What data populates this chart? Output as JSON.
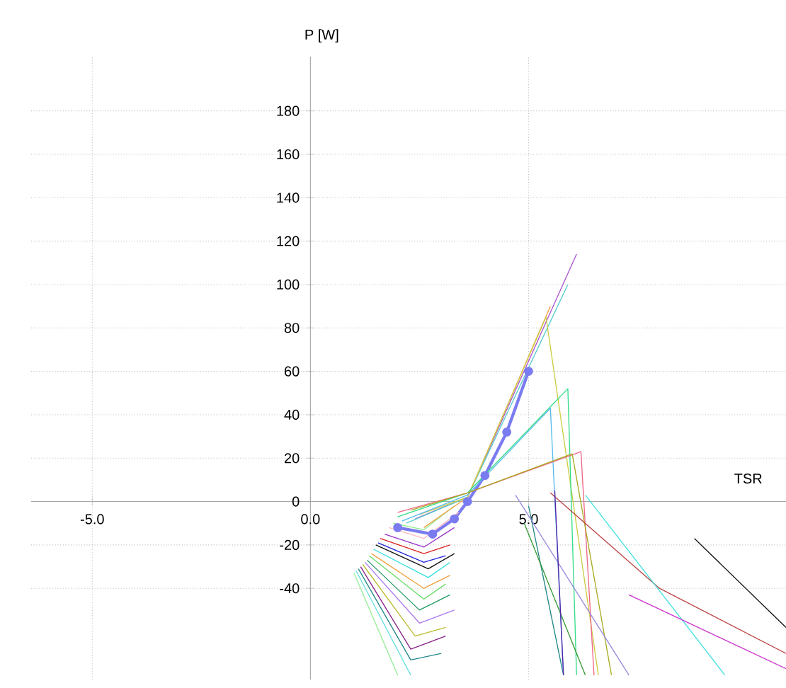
{
  "chart_data": {
    "type": "line",
    "xlabel": "TSR",
    "ylabel": "P [W]",
    "xlim": [
      -6.4,
      10.9
    ],
    "ylim": [
      -82,
      205
    ],
    "xticks": [
      {
        "value": -5,
        "label": "-5.0"
      },
      {
        "value": 0,
        "label": "0.0"
      },
      {
        "value": 5,
        "label": "5.0"
      }
    ],
    "yticks": [
      -40,
      -20,
      0,
      20,
      40,
      60,
      80,
      100,
      120,
      140,
      160,
      180
    ],
    "grid": true,
    "marker": "none",
    "line_style": "solid",
    "series": [
      {
        "color": "#7b7bf0",
        "marker": "circle",
        "x": [
          2.0,
          2.8,
          3.3,
          3.6,
          4.0,
          4.5,
          5.0
        ],
        "values": [
          -12,
          -15,
          -8,
          0,
          12,
          32,
          60
        ]
      },
      {
        "color": "#90ee90",
        "x": [
          1.9,
          2.6,
          3.3
        ],
        "values": [
          -10,
          -13,
          -2
        ]
      },
      {
        "color": "#ffb6c1",
        "x": [
          1.8,
          2.6,
          3.4
        ],
        "values": [
          -12,
          -17,
          -5
        ]
      },
      {
        "color": "#9932cc",
        "x": [
          1.7,
          2.6,
          3.3
        ],
        "values": [
          -15,
          -21,
          -12
        ]
      },
      {
        "color": "#dd2222",
        "x": [
          1.6,
          2.6,
          3.2
        ],
        "values": [
          -17,
          -24,
          -20
        ]
      },
      {
        "color": "#2222dd",
        "x": [
          1.55,
          2.6,
          3.1
        ],
        "values": [
          -19,
          -28,
          -25
        ]
      },
      {
        "color": "#111111",
        "x": [
          1.5,
          2.7,
          3.3
        ],
        "values": [
          -20,
          -31,
          -24
        ]
      },
      {
        "color": "#33dddd",
        "x": [
          1.45,
          2.7,
          3.2
        ],
        "values": [
          -22,
          -35,
          -28
        ]
      },
      {
        "color": "#f0a040",
        "x": [
          1.4,
          2.6,
          3.2
        ],
        "values": [
          -24,
          -40,
          -34
        ]
      },
      {
        "color": "#66dd66",
        "x": [
          1.35,
          2.6,
          3.1
        ],
        "values": [
          -25,
          -45,
          -38
        ]
      },
      {
        "color": "#229966",
        "x": [
          1.3,
          2.5,
          3.2
        ],
        "values": [
          -27,
          -50,
          -43
        ]
      },
      {
        "color": "#aa77ee",
        "x": [
          1.25,
          2.5,
          3.3
        ],
        "values": [
          -28,
          -56,
          -50
        ]
      },
      {
        "color": "#bbbb33",
        "x": [
          1.2,
          2.4,
          3.1
        ],
        "values": [
          -29,
          -62,
          -58
        ]
      },
      {
        "color": "#882288",
        "x": [
          1.15,
          2.3,
          3.1
        ],
        "values": [
          -30,
          -68,
          -62
        ]
      },
      {
        "color": "#228888",
        "x": [
          1.1,
          2.3,
          3.0
        ],
        "values": [
          -31,
          -73,
          -70
        ]
      },
      {
        "color": "#99ee99",
        "x": [
          1.0,
          2.0
        ],
        "values": [
          -33,
          -80
        ]
      },
      {
        "color": "#66e0e0",
        "x": [
          1.05,
          2.3
        ],
        "values": [
          -32,
          -80
        ]
      },
      {
        "color": "#aa55cc",
        "x": [
          2.4,
          3.6,
          6.1
        ],
        "values": [
          -8,
          2,
          114
        ]
      },
      {
        "color": "#55cccc",
        "x": [
          2.2,
          3.6,
          5.9
        ],
        "values": [
          -10,
          2,
          100
        ]
      },
      {
        "color": "#f0a040",
        "x": [
          2.6,
          3.6,
          5.5
        ],
        "values": [
          -12,
          2,
          90
        ]
      },
      {
        "color": "#cccc44",
        "x": [
          2.5,
          3.6,
          5.4,
          6.6
        ],
        "values": [
          -6,
          2,
          85,
          -80
        ]
      },
      {
        "color": "#33dd88",
        "x": [
          2.0,
          3.6,
          5.9,
          6.1
        ],
        "values": [
          -7,
          4,
          52,
          -80
        ]
      },
      {
        "color": "#55bbee",
        "x": [
          2.1,
          3.6,
          5.5,
          5.8
        ],
        "values": [
          -9,
          3,
          43,
          -80
        ]
      },
      {
        "color": "#ee6688",
        "x": [
          2.0,
          3.6,
          6.2,
          6.5
        ],
        "values": [
          -5,
          4,
          23,
          -80
        ]
      },
      {
        "color": "#aaaa22",
        "x": [
          2.3,
          3.6,
          6.0,
          6.9
        ],
        "values": [
          -4,
          4,
          22,
          -80
        ]
      },
      {
        "color": "#bb4444",
        "x": [
          5.5,
          8.0,
          10.9
        ],
        "values": [
          4,
          -40,
          -70
        ]
      },
      {
        "color": "#228888",
        "x": [
          5.0,
          5.8
        ],
        "values": [
          -2,
          -80
        ]
      },
      {
        "color": "#339933",
        "x": [
          4.9,
          6.3
        ],
        "values": [
          -10,
          -80
        ]
      },
      {
        "color": "#9988dd",
        "x": [
          4.7,
          7.3
        ],
        "values": [
          3,
          -80
        ]
      },
      {
        "color": "#5522aa",
        "x": [
          5.6,
          5.8
        ],
        "values": [
          5,
          -80
        ]
      },
      {
        "color": "#44e0e0",
        "x": [
          6.3,
          9.5
        ],
        "values": [
          3,
          -80
        ]
      },
      {
        "color": "#cc33cc",
        "x": [
          7.3,
          10.9
        ],
        "values": [
          -43,
          -77
        ]
      },
      {
        "color": "#111111",
        "x": [
          8.8,
          10.9
        ],
        "values": [
          -17,
          -58
        ]
      }
    ]
  }
}
